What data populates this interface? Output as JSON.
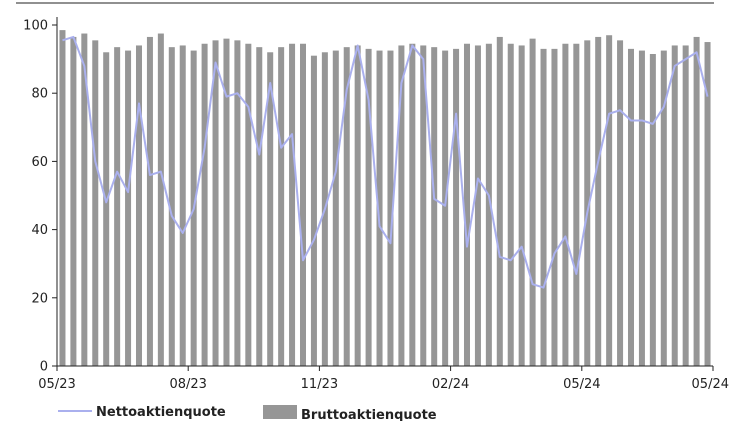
{
  "chart_data": {
    "type": "bar",
    "title": "",
    "xlabel": "",
    "ylabel": "",
    "ylim": [
      0,
      100
    ],
    "y_ticks": [
      0,
      20,
      40,
      60,
      80,
      100
    ],
    "x_tick_labels": [
      "05/23",
      "08/23",
      "11/23",
      "02/24",
      "05/24",
      "05/24"
    ],
    "grid": false,
    "legend_position": "bottom",
    "series": [
      {
        "name": "Nettoaktienquote",
        "type": "line",
        "color": "#aab0ee",
        "values": [
          95.5,
          96.5,
          88,
          60,
          48,
          57,
          51,
          77,
          56,
          57,
          44,
          39,
          46,
          64,
          89,
          79,
          80,
          76,
          62,
          83,
          64,
          68,
          31,
          37,
          46,
          57,
          81,
          94,
          78,
          41,
          36,
          83,
          94,
          90,
          49,
          47,
          74,
          35,
          55,
          50,
          32,
          31,
          35,
          24,
          23,
          33,
          38,
          27,
          45,
          60,
          74,
          75,
          72,
          72,
          71,
          76,
          88,
          90,
          92,
          79
        ]
      },
      {
        "name": "Bruttoaktienquote",
        "type": "bar",
        "color": "#969696",
        "values": [
          98.5,
          96.5,
          97.5,
          95.5,
          92,
          93.5,
          92.5,
          94,
          96.5,
          97.5,
          93.5,
          94,
          92.5,
          94.5,
          95.5,
          96,
          95.5,
          94.5,
          93.5,
          92,
          93.5,
          94.5,
          94.5,
          91,
          92,
          92.5,
          93.5,
          94,
          93,
          92.5,
          92.5,
          94,
          94.5,
          94,
          93.5,
          92.5,
          93,
          94.5,
          94,
          94.5,
          96.5,
          94.5,
          94,
          96,
          93,
          93,
          94.5,
          94.5,
          95.5,
          96.5,
          97,
          95.5,
          93,
          92.5,
          91.5,
          92.5,
          94,
          94,
          96.5,
          95
        ]
      }
    ],
    "legend": {
      "line_label": "Nettoaktienquote",
      "bar_label": "Bruttoaktienquote"
    }
  }
}
